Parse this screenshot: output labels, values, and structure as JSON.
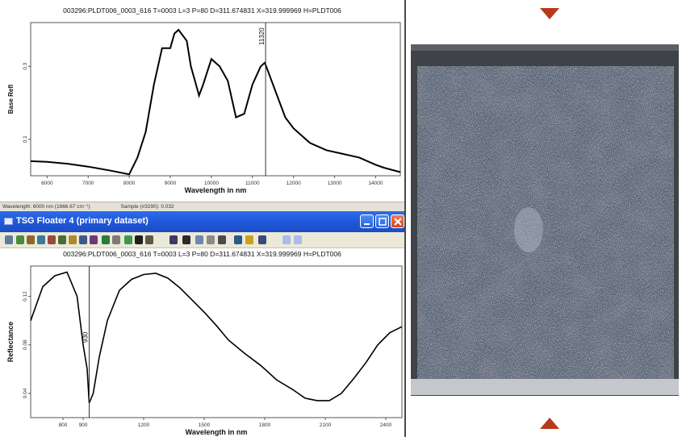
{
  "top_plot": {
    "header": "003296:PLDT006_0003_616  T=0003 L=3 P=80 D=311.674831 X=319.999969 H=PLDT006",
    "ylabel": "Base Refl",
    "xlabel": "Wavelength in nm",
    "y_ticks": [
      "0.3",
      "0.1"
    ],
    "x_ticks": [
      "6000",
      "7000",
      "8000",
      "9000",
      "10000",
      "11000",
      "12000",
      "13000",
      "14000"
    ],
    "marker_label": "11320",
    "status_wavelength": "Wavelength: 6000 nm   (1666.67 cm⁻¹)",
    "status_sample": "Sample (#3290): 0.032"
  },
  "bottom_window": {
    "title": "TSG Floater 4 (primary dataset)",
    "header": "003296:PLDT006_0003_616  T=0003 L=3 P=80 D=311.674831 X=319.999969 H=PLDT006",
    "ylabel": "Reflectance",
    "xlabel": "Wavelength in nm",
    "y_ticks": [
      "0.12",
      "0.08",
      "0.04"
    ],
    "x_ticks": [
      "800",
      "900",
      "1200",
      "1500",
      "1800",
      "2100",
      "2400"
    ],
    "marker_label": "930"
  },
  "colors": {
    "titlebar": "#1f55d6",
    "toolbar": "#ece9d8",
    "status_bar": "#e4e1d6",
    "marker_arrow": "#b83a1b",
    "photo_frame": "#3f4347"
  },
  "icons": {
    "photo_up_marker": "triangle-down-icon",
    "photo_down_marker": "triangle-up-icon"
  },
  "chart_data": [
    {
      "type": "line",
      "title": "003296:PLDT006_0003_616  T=0003 L=3 P=80 D=311.674831 X=319.999969 H=PLDT006",
      "xlabel": "Wavelength in nm",
      "ylabel": "Base Refl",
      "xlim": [
        5600,
        14600
      ],
      "ylim": [
        0.0,
        0.42
      ],
      "grid": false,
      "series": [
        {
          "x": [
            5600,
            6000,
            6500,
            7000,
            7500,
            8000,
            8200,
            8400,
            8600,
            8800,
            9000,
            9100,
            9200,
            9400,
            9500,
            9600,
            9700,
            9800,
            10000,
            10200,
            10400,
            10600,
            10800,
            11000,
            11200,
            11300,
            11400,
            11600,
            11800,
            12000,
            12400,
            12800,
            13200,
            13600,
            14000,
            14200,
            14600
          ],
          "y": [
            0.04,
            0.038,
            0.033,
            0.025,
            0.015,
            0.004,
            0.05,
            0.12,
            0.25,
            0.35,
            0.35,
            0.39,
            0.4,
            0.37,
            0.3,
            0.26,
            0.22,
            0.25,
            0.32,
            0.3,
            0.26,
            0.16,
            0.17,
            0.25,
            0.3,
            0.31,
            0.28,
            0.22,
            0.16,
            0.13,
            0.09,
            0.07,
            0.06,
            0.05,
            0.03,
            0.022,
            0.01
          ]
        }
      ],
      "annotations": [
        {
          "x": 11320,
          "label": "11320"
        }
      ]
    },
    {
      "type": "line",
      "title": "003296:PLDT006_0003_616  T=0003 L=3 P=80 D=311.674831 X=319.999969 H=PLDT006",
      "xlabel": "Wavelength in nm",
      "ylabel": "Reflectance",
      "xlim": [
        640,
        2480
      ],
      "ylim": [
        0.02,
        0.145
      ],
      "grid": false,
      "series": [
        {
          "x": [
            640,
            700,
            760,
            820,
            870,
            900,
            920,
            930,
            950,
            980,
            1020,
            1080,
            1140,
            1200,
            1260,
            1320,
            1380,
            1440,
            1500,
            1560,
            1620,
            1700,
            1780,
            1860,
            1940,
            2000,
            2060,
            2120,
            2180,
            2240,
            2300,
            2360,
            2420,
            2480
          ],
          "y": [
            0.1,
            0.128,
            0.137,
            0.14,
            0.12,
            0.08,
            0.06,
            0.032,
            0.04,
            0.07,
            0.1,
            0.125,
            0.134,
            0.138,
            0.139,
            0.135,
            0.127,
            0.117,
            0.107,
            0.096,
            0.084,
            0.073,
            0.063,
            0.051,
            0.043,
            0.036,
            0.034,
            0.034,
            0.04,
            0.052,
            0.065,
            0.08,
            0.09,
            0.095
          ]
        }
      ],
      "annotations": [
        {
          "x": 930,
          "label": "930"
        }
      ]
    }
  ]
}
